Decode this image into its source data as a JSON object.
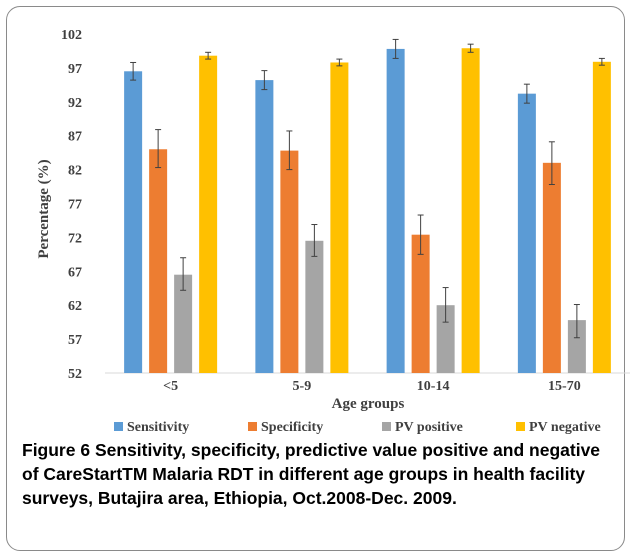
{
  "chart_data": {
    "type": "bar",
    "categories": [
      "<5",
      "5-9",
      "10-14",
      "15-70"
    ],
    "series": [
      {
        "name": "Sensitivity",
        "color": "#5b9bd5",
        "values": [
          96.5,
          95.2,
          99.8,
          93.2
        ],
        "err_low": [
          95.2,
          93.8,
          98.4,
          91.8
        ],
        "err_high": [
          97.8,
          96.6,
          101.2,
          94.6
        ]
      },
      {
        "name": "Specificity",
        "color": "#ed7d31",
        "values": [
          85.0,
          84.8,
          72.4,
          83.0
        ],
        "err_low": [
          82.3,
          82.0,
          69.5,
          79.8
        ],
        "err_high": [
          87.9,
          87.7,
          75.3,
          86.1
        ]
      },
      {
        "name": "PV positive",
        "color": "#a5a5a5",
        "values": [
          66.5,
          71.5,
          62.0,
          59.8
        ],
        "err_low": [
          64.2,
          69.2,
          59.5,
          57.2
        ],
        "err_high": [
          69.0,
          73.9,
          64.6,
          62.1
        ]
      },
      {
        "name": "PV negative",
        "color": "#ffc000",
        "values": [
          98.8,
          97.8,
          99.9,
          97.9
        ],
        "err_low": [
          98.3,
          97.3,
          99.3,
          97.4
        ],
        "err_high": [
          99.3,
          98.3,
          100.5,
          98.4
        ]
      }
    ],
    "ylim": [
      52,
      102
    ],
    "yticks": [
      "52",
      "57",
      "62",
      "67",
      "72",
      "77",
      "82",
      "87",
      "92",
      "97",
      "102"
    ],
    "xlabel": "Age groups",
    "ylabel": "Percentage (%)",
    "legend_position": "bottom",
    "grid": false
  },
  "caption": {
    "label": "Figure 6",
    "text": " Sensitivity, specificity, predictive value positive and negative of CareStartTM Malaria RDT in different age groups in health facility surveys, Butajira area, Ethiopia, Oct.2008-Dec. 2009."
  }
}
